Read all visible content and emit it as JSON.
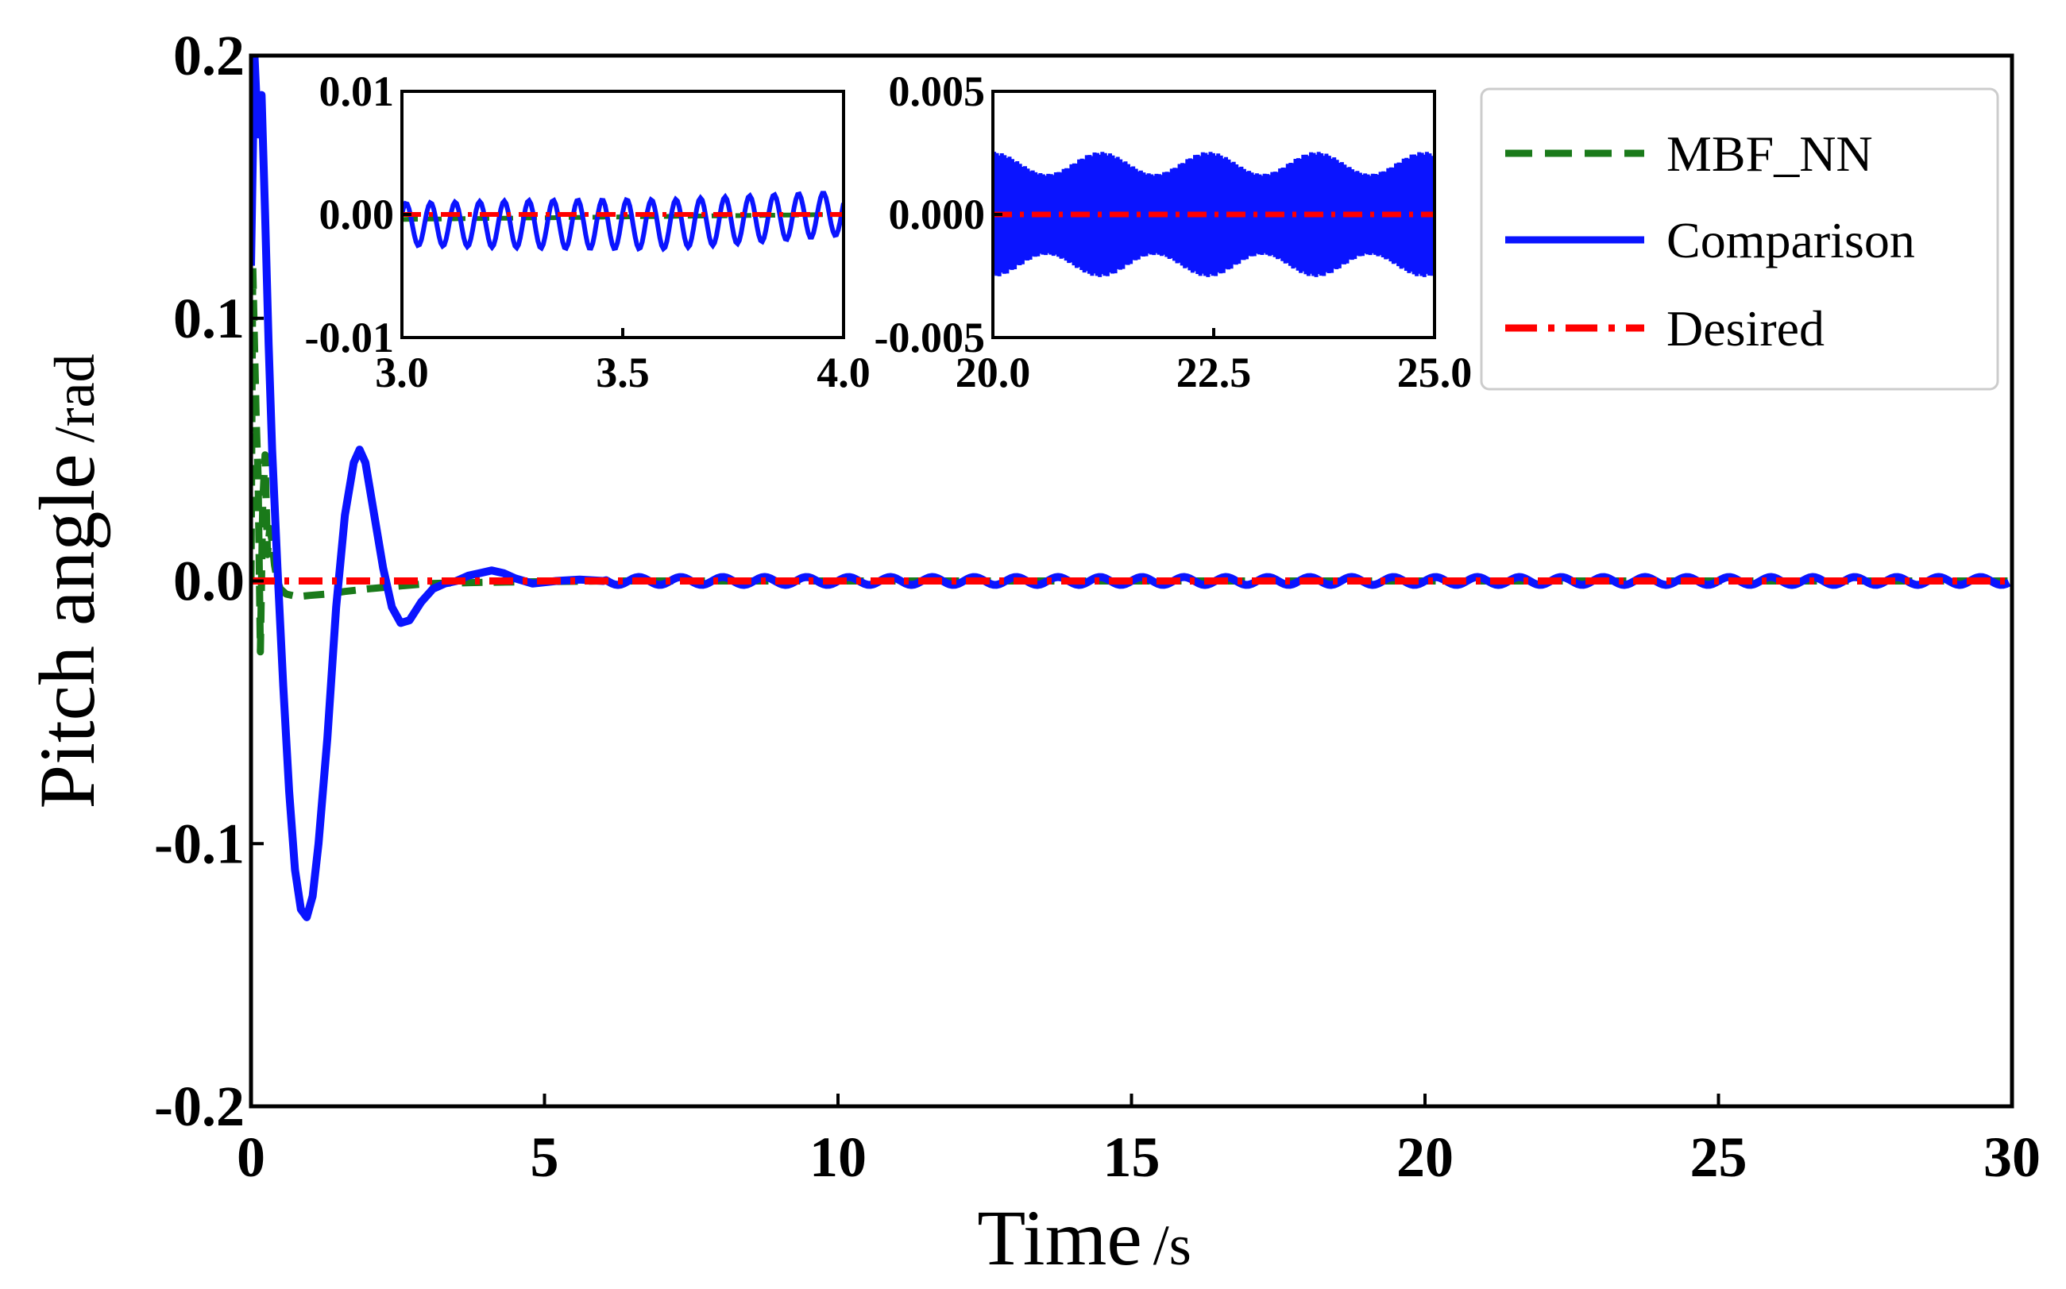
{
  "colors": {
    "mbf_nn": "#1a7a1a",
    "comparison": "#0a14ff",
    "desired": "#ff0000",
    "axes": "#000000",
    "legend_border": "#cccccc"
  },
  "chart_data": {
    "type": "line",
    "xlabel_main": "Time",
    "xlabel_unit": "/s",
    "ylabel_main": "Pitch angle",
    "ylabel_unit": "/rad",
    "xlim": [
      0,
      30
    ],
    "ylim": [
      -0.2,
      0.2
    ],
    "xticks": [
      0,
      5,
      10,
      15,
      20,
      25,
      30
    ],
    "xtick_labels": [
      "0",
      "5",
      "10",
      "15",
      "20",
      "25",
      "30"
    ],
    "yticks": [
      -0.2,
      -0.1,
      0.0,
      0.1,
      0.2
    ],
    "ytick_labels": [
      "-0.2",
      "-0.1",
      "0.0",
      "0.1",
      "0.2"
    ],
    "grid": false,
    "legend_position": "top-right",
    "series": [
      {
        "name": "MBF_NN",
        "style": "dashed",
        "x": [
          0.0,
          0.03,
          0.06,
          0.09,
          0.12,
          0.16,
          0.2,
          0.24,
          0.28,
          0.32,
          0.36,
          0.4,
          0.45,
          0.5,
          0.6,
          0.8,
          1.0,
          1.3,
          1.6,
          2.0,
          2.5,
          3.0,
          4.0,
          6.0,
          10.0,
          15.0,
          20.0,
          25.0,
          30.0
        ],
        "y": [
          0.0,
          0.12,
          0.09,
          0.06,
          0.04,
          -0.027,
          0.03,
          0.048,
          0.01,
          0.02,
          0.015,
          0.006,
          0.0,
          -0.003,
          -0.005,
          -0.006,
          -0.0055,
          -0.005,
          -0.004,
          -0.003,
          -0.002,
          -0.001,
          -0.0005,
          0.0,
          0.0,
          0.0,
          0.0,
          0.0,
          0.0
        ]
      },
      {
        "name": "Comparison",
        "style": "solid",
        "x": [
          0.0,
          0.06,
          0.12,
          0.18,
          0.24,
          0.3,
          0.36,
          0.45,
          0.55,
          0.65,
          0.75,
          0.85,
          0.95,
          1.05,
          1.15,
          1.3,
          1.45,
          1.6,
          1.75,
          1.85,
          1.95,
          2.1,
          2.25,
          2.4,
          2.55,
          2.7,
          2.9,
          3.1,
          3.3,
          3.5,
          3.7,
          3.9,
          4.1,
          4.3,
          4.5,
          4.8,
          5.2,
          5.6,
          6.0,
          7.0,
          8.0,
          9.0,
          10.0,
          12.0,
          15.0,
          20.0,
          25.0,
          30.0
        ],
        "y": [
          0.12,
          0.2,
          0.17,
          0.185,
          0.14,
          0.09,
          0.05,
          0.005,
          -0.04,
          -0.08,
          -0.11,
          -0.125,
          -0.128,
          -0.12,
          -0.1,
          -0.06,
          -0.01,
          0.025,
          0.045,
          0.05,
          0.045,
          0.025,
          0.005,
          -0.01,
          -0.016,
          -0.015,
          -0.008,
          -0.003,
          -0.001,
          0.0,
          0.002,
          0.003,
          0.004,
          0.003,
          0.001,
          -0.001,
          0.0,
          0.0005,
          0.0,
          0.0,
          0.0,
          0.0,
          0.0,
          0.0,
          0.0,
          0.0,
          0.0,
          0.0
        ]
      },
      {
        "name": "Desired",
        "style": "dashdot",
        "x": [
          0,
          30
        ],
        "y": [
          0,
          0
        ]
      }
    ],
    "insets": [
      {
        "xlim": [
          3.0,
          4.0
        ],
        "ylim": [
          -0.01,
          0.01
        ],
        "xticks": [
          3.0,
          3.5,
          4.0
        ],
        "xtick_labels": [
          "3.0",
          "3.5",
          "4.0"
        ],
        "yticks": [
          -0.01,
          0.0,
          0.01
        ],
        "ytick_labels": [
          "-0.01",
          "0.00",
          "0.01"
        ]
      },
      {
        "xlim": [
          20.0,
          25.0
        ],
        "ylim": [
          -0.005,
          0.005
        ],
        "xticks": [
          20.0,
          22.5,
          25.0
        ],
        "xtick_labels": [
          "20.0",
          "22.5",
          "25.0"
        ],
        "yticks": [
          -0.005,
          0.0,
          0.005
        ],
        "ytick_labels": [
          "-0.005",
          "0.000",
          "0.005"
        ]
      }
    ]
  }
}
